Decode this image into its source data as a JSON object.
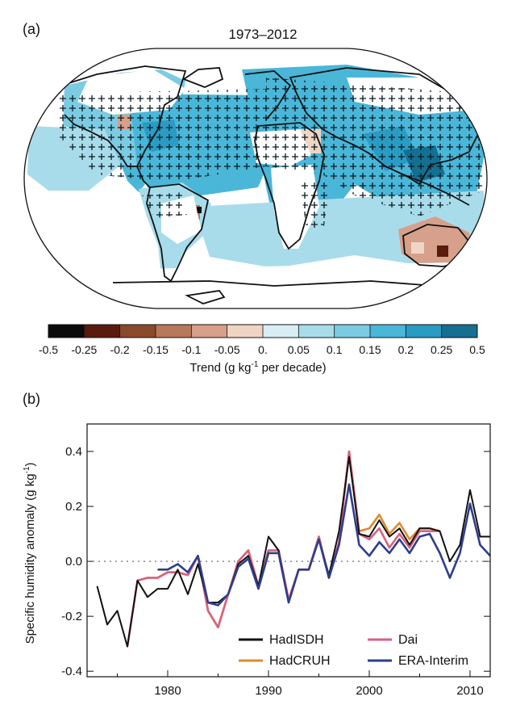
{
  "panel_a": {
    "label": "(a)",
    "title": "1973–2012",
    "colorbar": {
      "ticks": [
        "-0.5",
        "-0.25",
        "-0.2",
        "-0.15",
        "-0.1",
        "-0.05",
        "0.",
        "0.05",
        "0.1",
        "0.15",
        "0.2",
        "0.25",
        "0.5"
      ],
      "colors": [
        "#0b0b0b",
        "#5a1a0e",
        "#8a4a2a",
        "#b8785a",
        "#d6a08a",
        "#f0d4c4",
        "#d8eef4",
        "#a8dcea",
        "#7ccbe2",
        "#4ab6d8",
        "#2a9cc4",
        "#146f90"
      ],
      "label_main": "Trend (g kg",
      "label_sup": "-1",
      "label_end": " per decade)"
    }
  },
  "panel_b": {
    "label": "(b)",
    "ylabel_main": "Specific humidity anomaly (g kg",
    "ylabel_sup": "-1",
    "ylabel_end": ")",
    "legend": [
      {
        "name": "HadISDH",
        "color": "#111111"
      },
      {
        "name": "Dai",
        "color": "#d9607e"
      },
      {
        "name": "HadCRUH",
        "color": "#e08a2c"
      },
      {
        "name": "ERA-Interim",
        "color": "#2e3e8c"
      }
    ]
  },
  "chart_data": [
    {
      "type": "heatmap",
      "title": "1973–2012",
      "colorbar_label": "Trend (g kg-1 per decade)",
      "colorbar_ticks": [
        -0.5,
        -0.25,
        -0.2,
        -0.15,
        -0.1,
        -0.05,
        0.0,
        0.05,
        0.1,
        0.15,
        0.2,
        0.25,
        0.5
      ]
    },
    {
      "type": "line",
      "ylabel": "Specific humidity anomaly (g kg-1)",
      "xlim": [
        1972,
        2012
      ],
      "ylim": [
        -0.42,
        0.5
      ],
      "xticks": [
        1980,
        1990,
        2000,
        2010
      ],
      "yticks": [
        -0.4,
        -0.2,
        0.0,
        0.2,
        0.4
      ],
      "ytick_labels": [
        "-0.4",
        "-0.2",
        "0.0",
        "0.2",
        "0.4"
      ],
      "grid": false,
      "reference_line": 0.0,
      "legend_position": "bottom-right",
      "series": [
        {
          "name": "HadISDH",
          "x": [
            1973,
            1974,
            1975,
            1976,
            1977,
            1978,
            1979,
            1980,
            1981,
            1982,
            1983,
            1984,
            1985,
            1986,
            1987,
            1988,
            1989,
            1990,
            1991,
            1992,
            1993,
            1994,
            1995,
            1996,
            1997,
            1998,
            1999,
            2000,
            2001,
            2002,
            2003,
            2004,
            2005,
            2006,
            2007,
            2008,
            2009,
            2010,
            2011,
            2012
          ],
          "values": [
            -0.09,
            -0.23,
            -0.18,
            -0.31,
            -0.07,
            -0.13,
            -0.1,
            -0.1,
            -0.03,
            -0.12,
            -0.01,
            -0.15,
            -0.15,
            -0.12,
            -0.01,
            0.02,
            -0.09,
            0.09,
            0.04,
            -0.15,
            -0.03,
            -0.03,
            0.08,
            -0.05,
            0.11,
            0.38,
            0.1,
            0.09,
            0.15,
            0.09,
            0.12,
            0.06,
            0.12,
            0.12,
            0.11,
            0.0,
            0.06,
            0.26,
            0.09,
            0.09
          ]
        },
        {
          "name": "HadCRUH",
          "x": [
            1977,
            1978,
            1979,
            1980,
            1981,
            1982,
            1983,
            1984,
            1985,
            1986,
            1987,
            1988,
            1989,
            1990,
            1991,
            1992,
            1993,
            1994,
            1995,
            1996,
            1997,
            1998,
            1999,
            2000,
            2001,
            2002,
            2003,
            2004,
            2005,
            2006,
            2007
          ],
          "values": [
            -0.07,
            -0.06,
            -0.06,
            -0.04,
            -0.04,
            -0.05,
            0.02,
            -0.18,
            -0.24,
            -0.12,
            0.0,
            0.04,
            -0.09,
            0.04,
            0.04,
            -0.14,
            -0.03,
            -0.03,
            0.09,
            -0.06,
            0.07,
            0.4,
            0.11,
            0.12,
            0.17,
            0.1,
            0.14,
            0.08,
            0.12,
            0.12,
            0.11
          ]
        },
        {
          "name": "Dai",
          "x": [
            1976,
            1977,
            1978,
            1979,
            1980,
            1981,
            1982,
            1983,
            1984,
            1985,
            1986,
            1987,
            1988,
            1989,
            1990,
            1991,
            1992,
            1993,
            1994,
            1995,
            1996,
            1997,
            1998,
            1999,
            2000,
            2001,
            2002,
            2003,
            2004,
            2005,
            2006,
            2007
          ],
          "values": [
            -0.31,
            -0.07,
            -0.06,
            -0.06,
            -0.04,
            -0.04,
            -0.05,
            0.02,
            -0.18,
            -0.24,
            -0.12,
            0.0,
            0.04,
            -0.09,
            0.04,
            0.04,
            -0.14,
            -0.03,
            -0.03,
            0.09,
            -0.06,
            0.07,
            0.4,
            0.1,
            0.08,
            0.12,
            0.05,
            0.1,
            0.05,
            0.11,
            0.11,
            0.11
          ]
        },
        {
          "name": "ERA-Interim",
          "x": [
            1979,
            1980,
            1981,
            1982,
            1983,
            1984,
            1985,
            1986,
            1987,
            1988,
            1989,
            1990,
            1991,
            1992,
            1993,
            1994,
            1995,
            1996,
            1997,
            1998,
            1999,
            2000,
            2001,
            2002,
            2003,
            2004,
            2005,
            2006,
            2007,
            2008,
            2009,
            2010,
            2011,
            2012
          ],
          "values": [
            -0.03,
            -0.03,
            -0.01,
            -0.04,
            0.02,
            -0.15,
            -0.16,
            -0.12,
            -0.02,
            0.01,
            -0.1,
            0.03,
            0.03,
            -0.15,
            -0.03,
            -0.03,
            0.08,
            -0.06,
            0.06,
            0.28,
            0.06,
            0.02,
            0.07,
            0.03,
            0.08,
            0.03,
            0.09,
            0.1,
            0.03,
            -0.06,
            0.03,
            0.21,
            0.06,
            0.02
          ]
        }
      ]
    }
  ]
}
